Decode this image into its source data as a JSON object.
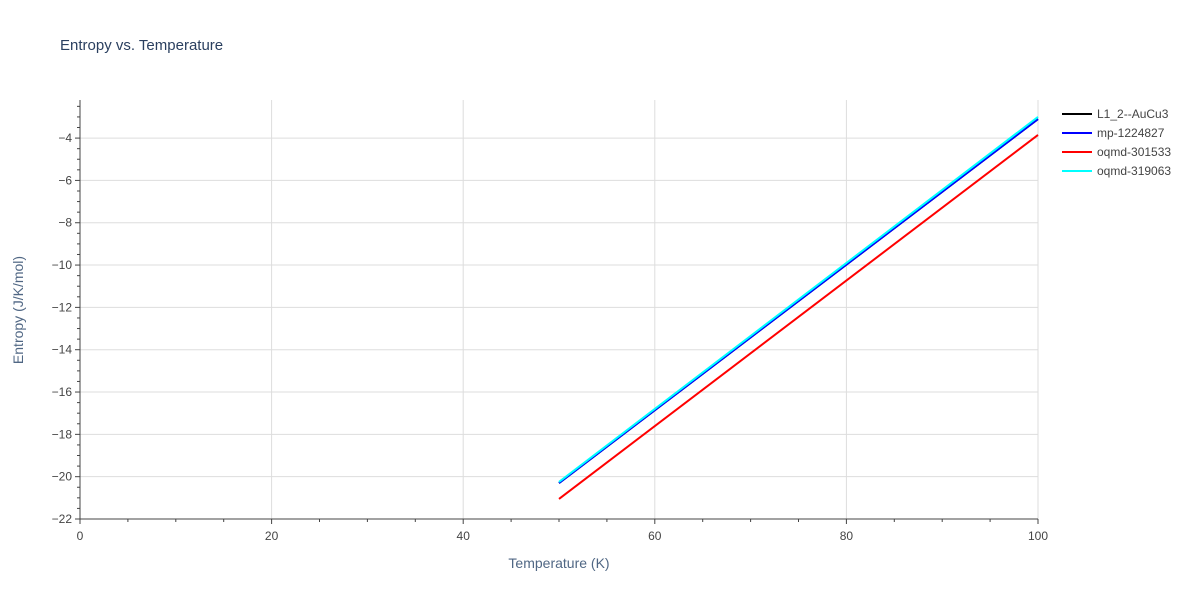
{
  "chart_data": {
    "type": "line",
    "title": "Entropy vs. Temperature",
    "xlabel": "Temperature (K)",
    "ylabel": "Entropy (J/K/mol)",
    "xlim": [
      0,
      100
    ],
    "ylim": [
      -22,
      -2.2
    ],
    "x_ticks": [
      0,
      20,
      40,
      60,
      80,
      100
    ],
    "x_tick_labels": [
      "0",
      "20",
      "40",
      "60",
      "80",
      "100"
    ],
    "y_ticks": [
      -22,
      -20,
      -18,
      -16,
      -14,
      -12,
      -10,
      -8,
      -6,
      -4
    ],
    "y_tick_labels": [
      "−22",
      "−20",
      "−18",
      "−16",
      "−14",
      "−12",
      "−10",
      "−8",
      "−6",
      "−4"
    ],
    "grid": true,
    "legend_position": "top-right",
    "series": [
      {
        "name": "L1_2--AuCu3",
        "color": "#000000",
        "x": [
          50,
          100
        ],
        "y": [
          -20.3,
          -3.1
        ]
      },
      {
        "name": "mp-1224827",
        "color": "#0000ff",
        "x": [
          50,
          100
        ],
        "y": [
          -20.3,
          -3.1
        ]
      },
      {
        "name": "oqmd-301533",
        "color": "#ff0000",
        "x": [
          50,
          100
        ],
        "y": [
          -21.05,
          -3.85
        ]
      },
      {
        "name": "oqmd-319063",
        "color": "#00ffff",
        "x": [
          50,
          100
        ],
        "y": [
          -20.25,
          -3.0
        ]
      }
    ]
  }
}
